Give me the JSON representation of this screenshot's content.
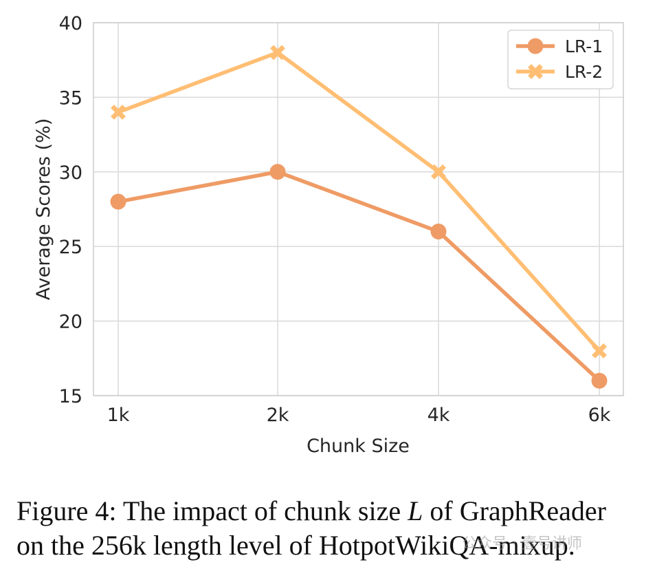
{
  "chart_data": {
    "type": "line",
    "xlabel": "Chunk Size",
    "ylabel": "Average Scores (%)",
    "categories": [
      "1k",
      "2k",
      "4k",
      "6k"
    ],
    "ylim": [
      15,
      40
    ],
    "yticks": [
      15,
      20,
      25,
      30,
      35,
      40
    ],
    "grid": true,
    "legend_position": "top-right",
    "series": [
      {
        "name": "LR-1",
        "marker": "circle",
        "color": "#EF9B65",
        "values": [
          28,
          30,
          26,
          16
        ]
      },
      {
        "name": "LR-2",
        "marker": "x",
        "color": "#FFBE73",
        "values": [
          34,
          38,
          30,
          18
        ]
      }
    ]
  },
  "caption": {
    "prefix": "Figure 4: The impact of chunk size ",
    "symbol": "L",
    "line1_suffix": " of GraphReader",
    "line2": "on the 256k length level of HotpotWikiQA-mixup."
  },
  "watermark": "公众号 · 壹号讲师"
}
